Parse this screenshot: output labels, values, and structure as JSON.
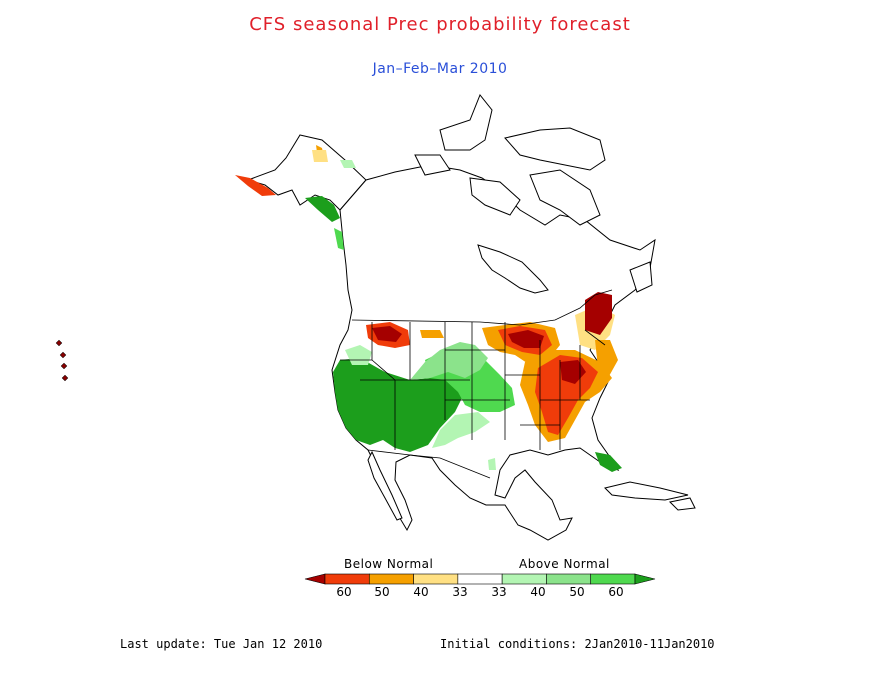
{
  "title": "CFS seasonal Prec probability forecast",
  "subtitle": "Jan–Feb–Mar 2010",
  "colors": {
    "title": "#e0202a",
    "subtitle": "#2a4fd8",
    "outline": "#000000"
  },
  "legend": {
    "below_label": "Below Normal",
    "above_label": "Above Normal",
    "ticks": [
      "60",
      "50",
      "40",
      "33",
      "33",
      "40",
      "50",
      "60"
    ],
    "categories": [
      {
        "name": "below-60",
        "color": "#a50000"
      },
      {
        "name": "below-50",
        "color": "#f03c0a"
      },
      {
        "name": "below-40",
        "color": "#f5a000"
      },
      {
        "name": "below-33",
        "color": "#ffe083"
      },
      {
        "name": "normal",
        "color": "#ffffff"
      },
      {
        "name": "above-33",
        "color": "#b3f5b3"
      },
      {
        "name": "above-40",
        "color": "#8be38b"
      },
      {
        "name": "above-50",
        "color": "#4fd94f"
      },
      {
        "name": "above-60",
        "color": "#1c9e1c"
      }
    ]
  },
  "footer": {
    "last_update": "Last update: Tue Jan 12 2010",
    "initial_conditions": "Initial conditions: 2Jan2010-11Jan2010"
  }
}
